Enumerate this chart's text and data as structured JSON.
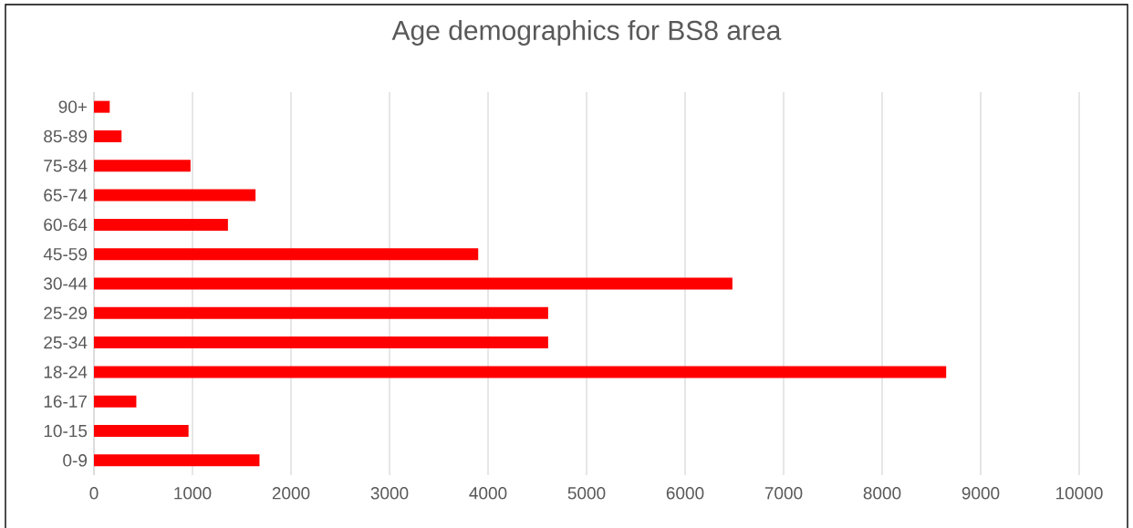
{
  "chart_data": {
    "type": "bar",
    "orientation": "horizontal",
    "title": "Age demographics for BS8 area",
    "categories": [
      "90+",
      "85-89",
      "75-84",
      "65-74",
      "60-64",
      "45-59",
      "30-44",
      "25-29",
      "25-34",
      "18-24",
      "16-17",
      "10-15",
      "0-9"
    ],
    "values": [
      160,
      280,
      980,
      1640,
      1360,
      3900,
      6480,
      4610,
      4610,
      8650,
      430,
      960,
      1680
    ],
    "color": "#ff0000",
    "xlim": [
      0,
      10000
    ],
    "xticks": [
      0,
      1000,
      2000,
      3000,
      4000,
      5000,
      6000,
      7000,
      8000,
      9000,
      10000
    ],
    "grid": "x"
  }
}
